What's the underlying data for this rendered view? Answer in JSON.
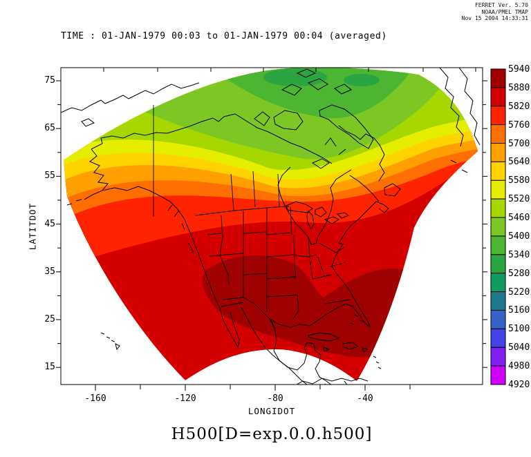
{
  "credits": {
    "line1": "FERRET Ver. 5.70",
    "line2": "NOAA/PMEL TMAP",
    "line3": "Nov 15 2004 14:33:31"
  },
  "title": "TIME : 01-JAN-1979 00:03 to 01-JAN-1979 00:04 (averaged)",
  "variable_label": "H500[D=exp.0.0.h500]",
  "axes": {
    "y": {
      "label": "LATITDOT",
      "ticks": [
        75,
        65,
        55,
        45,
        35,
        25,
        15
      ],
      "minor_ticks": [
        70,
        60,
        50,
        40,
        30,
        20
      ]
    },
    "x": {
      "label": "LONGIDOT",
      "ticks": [
        -160,
        -120,
        -80,
        -40
      ],
      "minor_ticks": [
        -140,
        -100,
        -60,
        -20
      ]
    }
  },
  "colorbar": {
    "labels": [
      5940,
      5880,
      5820,
      5760,
      5700,
      5640,
      5580,
      5520,
      5460,
      5400,
      5340,
      5280,
      5220,
      5160,
      5100,
      5040,
      4980,
      4920
    ],
    "min": 4920,
    "max": 5940,
    "step": 60
  },
  "chart_data": {
    "type": "heatmap",
    "title": "TIME : 01-JAN-1979 00:03 to 01-JAN-1979 00:04 (averaged)",
    "variable": "H500[D=exp.0.0.h500]",
    "xlabel": "LONGIDOT",
    "ylabel": "LATITDOT",
    "xticks": [
      -160,
      -120,
      -80,
      -40
    ],
    "yticks": [
      15,
      25,
      35,
      45,
      55,
      65,
      75
    ],
    "levels": [
      4920,
      4980,
      5040,
      5100,
      5160,
      5220,
      5280,
      5340,
      5400,
      5460,
      5520,
      5580,
      5640,
      5700,
      5760,
      5820,
      5880,
      5940
    ],
    "colors_low_to_high": [
      "#d000ff",
      "#8020f0",
      "#4343e8",
      "#3563c8",
      "#1f7a8e",
      "#119b60",
      "#2aa542",
      "#4cb532",
      "#7cc724",
      "#a6d800",
      "#e6ee00",
      "#ffd300",
      "#ff9f00",
      "#ff6e00",
      "#ff2400",
      "#d40000",
      "#9f0000"
    ],
    "legend_position": "right",
    "grid": false,
    "region": "North America, curvilinear-grid fan-shaped domain with coastlines and state borders overlaid",
    "sampled_values": [
      {
        "region": "Canadian Arctic Archipelago (top of fan)",
        "approx_value": "5280-5400"
      },
      {
        "region": "Hudson Bay / northern Canada",
        "approx_value": "5460-5640"
      },
      {
        "region": "Alaska interior",
        "approx_value": "5580-5700"
      },
      {
        "region": "Great Lakes / northern US",
        "approx_value": "5700-5800"
      },
      {
        "region": "US west and east coasts",
        "approx_value": "5820-5880"
      },
      {
        "region": "Texas, Mexico, Gulf, Southeast US, Caribbean",
        "approx_value": "5880-5940"
      },
      {
        "region": "southern edge of fan (tropics)",
        "approx_value": "5820-5880"
      }
    ]
  }
}
